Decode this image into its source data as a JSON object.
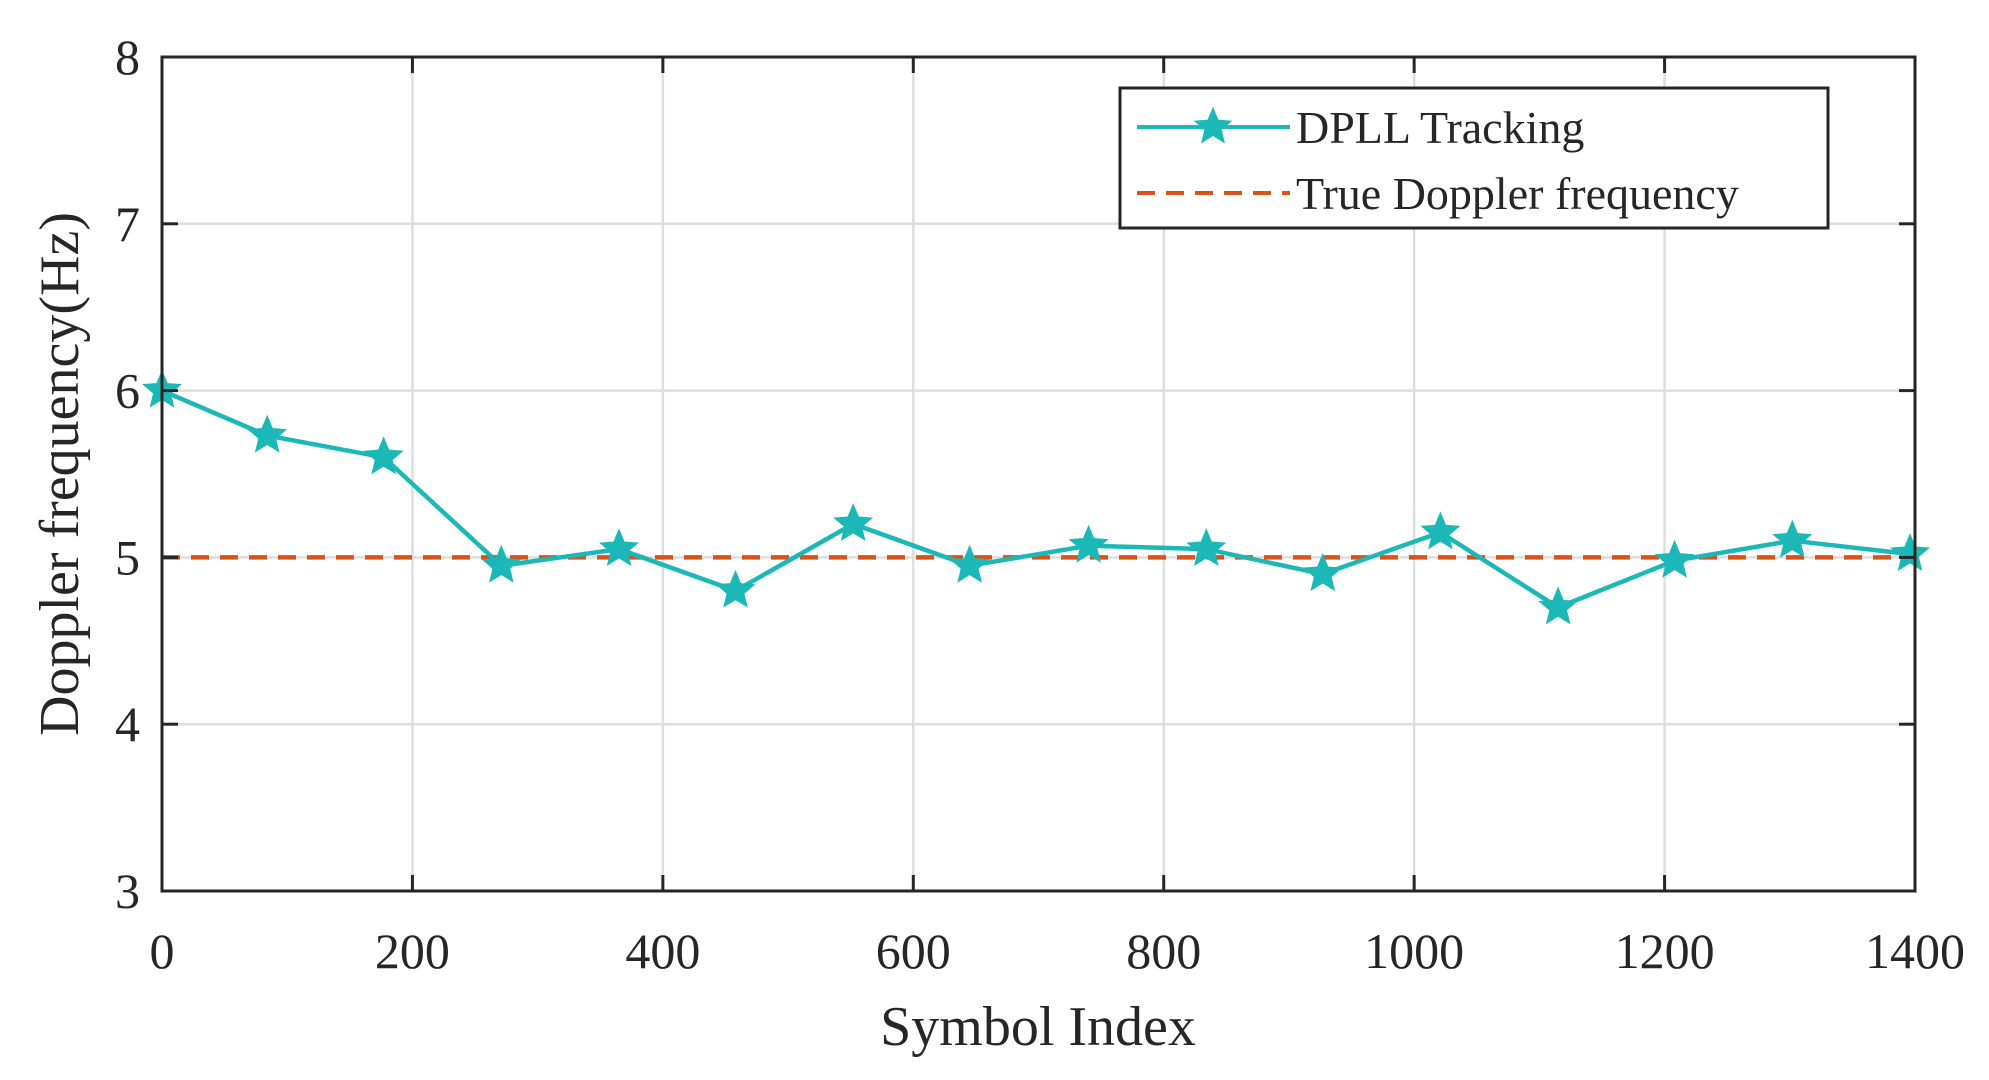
{
  "chart_data": {
    "type": "line",
    "title": "",
    "xlabel": "Symbol Index",
    "ylabel": "Doppler frequency(Hz)",
    "xlim": [
      0,
      1400
    ],
    "ylim": [
      3,
      8
    ],
    "xticks": [
      0,
      200,
      400,
      600,
      800,
      1000,
      1200,
      1400
    ],
    "yticks": [
      3,
      4,
      5,
      6,
      7,
      8
    ],
    "grid": true,
    "legend_position": "top-right",
    "series": [
      {
        "name": "DPLL Tracking",
        "style": "solid line with star markers",
        "color": "#1CB8B8",
        "x": [
          0,
          84,
          177,
          271,
          365,
          458,
          552,
          645,
          740,
          834,
          927,
          1021,
          1115,
          1208,
          1302,
          1396
        ],
        "y": [
          6.0,
          5.73,
          5.6,
          4.95,
          5.05,
          4.8,
          5.2,
          4.95,
          5.07,
          5.05,
          4.9,
          5.15,
          4.7,
          4.98,
          5.1,
          5.02
        ]
      },
      {
        "name": "True Doppler frequency",
        "style": "dashed line",
        "color": "#D95319",
        "x": [
          0,
          1400
        ],
        "y": [
          5,
          5
        ]
      }
    ]
  }
}
